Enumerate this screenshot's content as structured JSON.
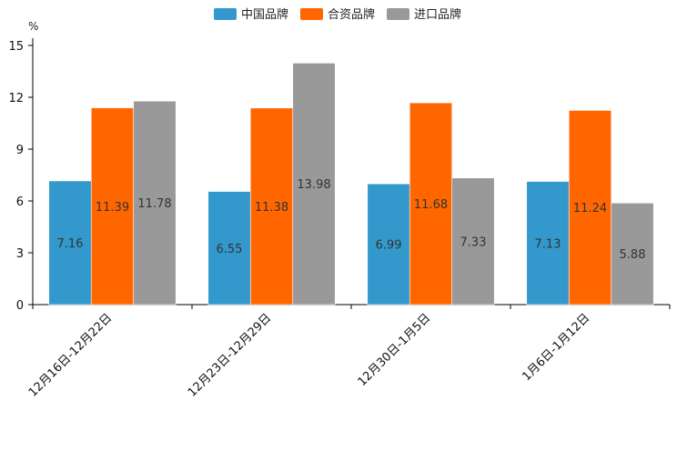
{
  "chart_data": {
    "type": "bar",
    "title": "",
    "xlabel": "",
    "ylabel": "%",
    "ylim": [
      0,
      15
    ],
    "yticks": [
      0,
      3,
      6,
      9,
      12,
      15
    ],
    "legend_position": "top-center",
    "grid": false,
    "categories": [
      "12月16日-12月22日",
      "12月23日-12月29日",
      "12月30日-1月5日",
      "1月6日-1月12日"
    ],
    "series": [
      {
        "name": "中国品牌",
        "color": "#3399cc",
        "values": [
          7.16,
          6.55,
          6.99,
          7.13
        ]
      },
      {
        "name": "合资品牌",
        "color": "#ff6600",
        "values": [
          11.39,
          11.38,
          11.68,
          11.24
        ]
      },
      {
        "name": "进口品牌",
        "color": "#999999",
        "values": [
          11.78,
          13.98,
          7.33,
          5.88
        ]
      }
    ]
  }
}
